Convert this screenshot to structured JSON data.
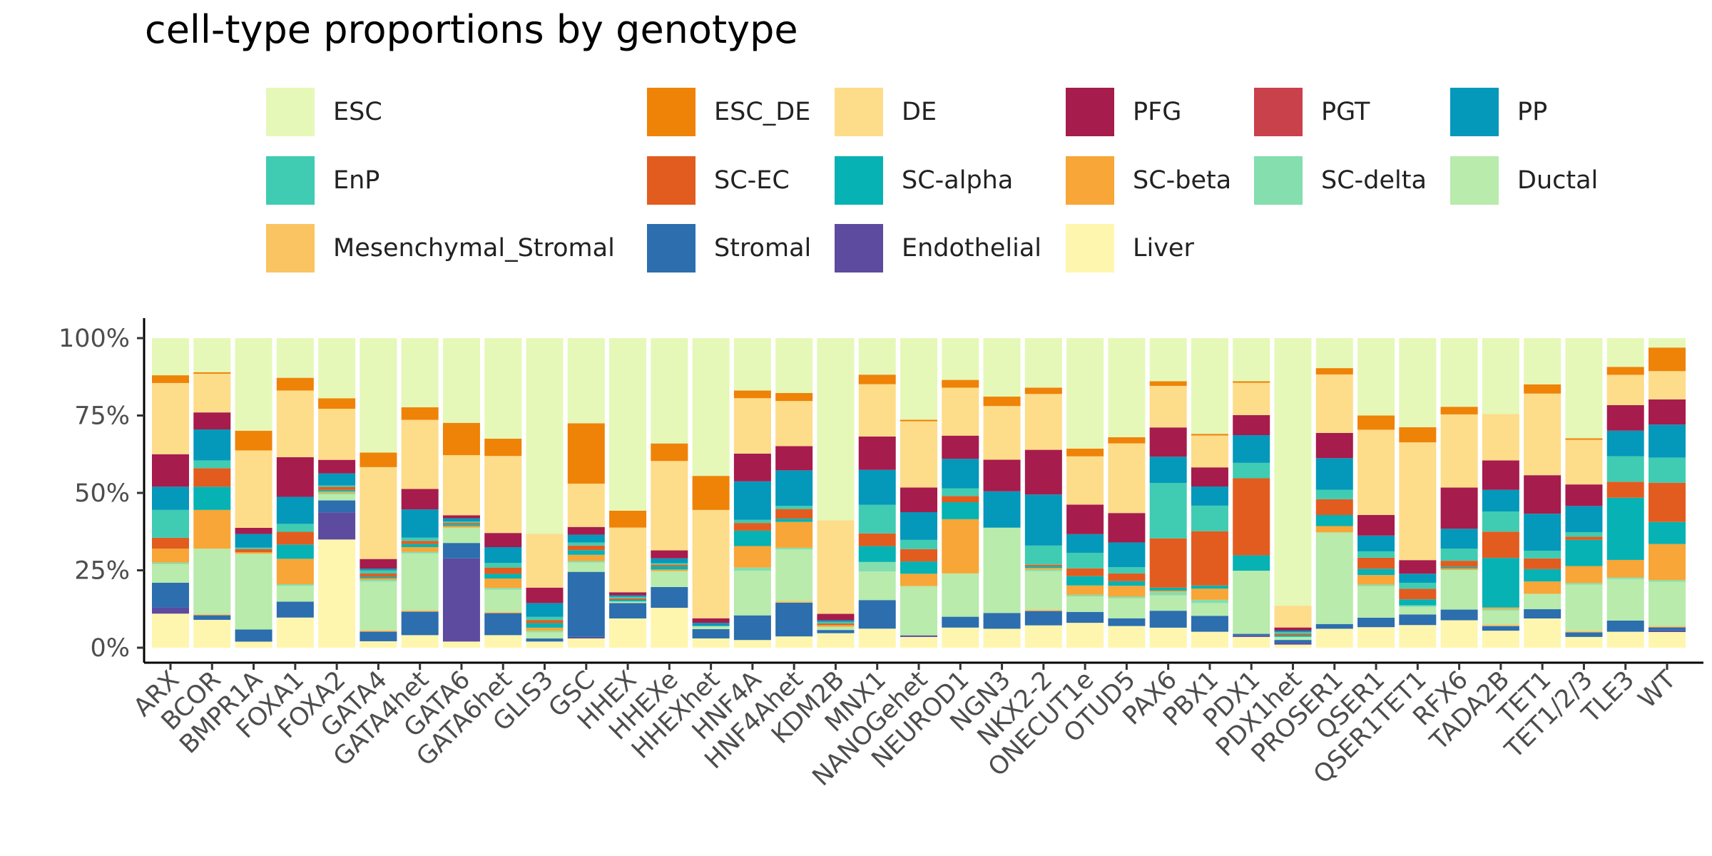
{
  "chart_data": {
    "type": "bar",
    "stacked": true,
    "title": "cell-type proportions by genotype",
    "xlabel": "",
    "ylabel": "",
    "ylim": [
      0,
      1
    ],
    "yticks": [
      0,
      0.25,
      0.5,
      0.75,
      1
    ],
    "ytick_labels": [
      "0%",
      "25%",
      "50%",
      "75%",
      "100%"
    ],
    "legend_position": "top",
    "categories": [
      "ARX",
      "BCOR",
      "BMPR1A",
      "FOXA1",
      "FOXA2",
      "GATA4",
      "GATA4het",
      "GATA6",
      "GATA6het",
      "GLIS3",
      "GSC",
      "HHEX",
      "HHEXe",
      "HHEXhet",
      "HNF4A",
      "HNF4Ahet",
      "KDM2B",
      "MNX1",
      "NANOGehet",
      "NEUROD1",
      "NGN3",
      "NKX2-2",
      "ONECUT1e",
      "OTUD5",
      "PAX6",
      "PBX1",
      "PDX1",
      "PDX1het",
      "PROSER1",
      "QSER1",
      "QSER1TET1",
      "RFX6",
      "TADA2B",
      "TET1",
      "TET1/2/3",
      "TLE3",
      "WT"
    ],
    "series": [
      {
        "name": "Liver",
        "color": "#FEF6AE",
        "values": [
          0.11,
          0.09,
          0.02,
          0.095,
          0.36,
          0.02,
          0.04,
          0.02,
          0.04,
          0.02,
          0.03,
          0.095,
          0.125,
          0.03,
          0.025,
          0.035,
          0.045,
          0.06,
          0.035,
          0.065,
          0.06,
          0.07,
          0.08,
          0.07,
          0.065,
          0.05,
          0.035,
          0.01,
          0.06,
          0.065,
          0.075,
          0.09,
          0.055,
          0.095,
          0.035,
          0.05,
          0.05
        ]
      },
      {
        "name": "Endothelial",
        "color": "#5C4B9E",
        "values": [
          0.02,
          0,
          0,
          0,
          0.09,
          0,
          0,
          0.27,
          0,
          0,
          0.005,
          0,
          0,
          0,
          0,
          0,
          0,
          0,
          0.005,
          0,
          0,
          0,
          0,
          0,
          0,
          0,
          0.005,
          0.005,
          0,
          0,
          0,
          0,
          0,
          0,
          0,
          0,
          0.005
        ]
      },
      {
        "name": "Stromal",
        "color": "#2C6EAE",
        "values": [
          0.08,
          0.015,
          0.04,
          0.05,
          0.04,
          0.03,
          0.075,
          0.05,
          0.07,
          0.01,
          0.21,
          0.05,
          0.065,
          0.03,
          0.08,
          0.105,
          0.01,
          0.09,
          0,
          0.035,
          0.05,
          0.045,
          0.035,
          0.025,
          0.055,
          0.05,
          0.005,
          0.01,
          0.015,
          0.03,
          0.035,
          0.035,
          0.015,
          0.03,
          0.015,
          0.035,
          0.01
        ]
      },
      {
        "name": "Mesenchymal_Stromal",
        "color": "#FAC462",
        "values": [
          0,
          0.005,
          0,
          0,
          0,
          0.005,
          0.005,
          0,
          0.005,
          0,
          0,
          0,
          0,
          0,
          0,
          0.005,
          0,
          0,
          0,
          0,
          0,
          0.005,
          0,
          0,
          0,
          0,
          0,
          0,
          0,
          0,
          0,
          0,
          0.005,
          0,
          0.005,
          0,
          0.005
        ]
      },
      {
        "name": "Ductal",
        "color": "#B8EBAC",
        "values": [
          0.06,
          0.21,
          0.25,
          0.05,
          0.02,
          0.15,
          0.18,
          0.05,
          0.07,
          0.02,
          0.03,
          0.005,
          0.05,
          0.01,
          0.145,
          0.16,
          0.01,
          0.09,
          0.16,
          0.14,
          0.27,
          0.12,
          0.05,
          0.065,
          0.05,
          0.04,
          0.205,
          0.01,
          0.29,
          0.1,
          0.025,
          0.13,
          0.045,
          0.05,
          0.15,
          0.13,
          0.14
        ]
      },
      {
        "name": "SC-delta",
        "color": "#84DEAE",
        "values": [
          0.005,
          0,
          0,
          0.005,
          0.005,
          0.005,
          0.005,
          0,
          0.005,
          0.005,
          0.005,
          0,
          0,
          0,
          0.01,
          0.005,
          0,
          0.03,
          0,
          0,
          0,
          0.005,
          0.005,
          0.005,
          0.01,
          0.01,
          0,
          0,
          0,
          0.005,
          0.005,
          0,
          0.005,
          0,
          0.005,
          0.005,
          0.005
        ]
      },
      {
        "name": "SC-beta",
        "color": "#F7A637",
        "values": [
          0.045,
          0.125,
          0.005,
          0.08,
          0.005,
          0.005,
          0.015,
          0.005,
          0.03,
          0.01,
          0.02,
          0,
          0.005,
          0,
          0.07,
          0.08,
          0.005,
          0,
          0.04,
          0.175,
          0,
          0.005,
          0.03,
          0.035,
          0.005,
          0.035,
          0,
          0,
          0.02,
          0.03,
          0,
          0.005,
          0.005,
          0.04,
          0.055,
          0.055,
          0.115
        ]
      },
      {
        "name": "SC-alpha",
        "color": "#06B2B3",
        "values": [
          0,
          0.075,
          0,
          0.045,
          0.005,
          0.005,
          0.01,
          0.005,
          0.015,
          0.015,
          0.015,
          0.005,
          0.01,
          0,
          0.05,
          0.01,
          0,
          0.05,
          0.04,
          0.055,
          0,
          0.005,
          0.03,
          0.015,
          0.01,
          0.01,
          0.05,
          0.005,
          0.035,
          0.02,
          0.02,
          0.005,
          0.16,
          0.04,
          0.085,
          0.195,
          0.07
        ]
      },
      {
        "name": "SC-EC",
        "color": "#E25C1F",
        "values": [
          0.035,
          0.06,
          0.01,
          0.04,
          0.01,
          0.01,
          0.01,
          0.005,
          0.02,
          0.01,
          0.015,
          0.005,
          0.005,
          0,
          0.025,
          0.03,
          0.005,
          0.04,
          0.04,
          0.02,
          0,
          0.005,
          0.025,
          0.025,
          0.16,
          0.17,
          0.25,
          0.005,
          0.05,
          0.035,
          0.035,
          0.02,
          0.085,
          0.035,
          0.01,
          0.05,
          0.125
        ]
      },
      {
        "name": "EnP",
        "color": "#3FCCB2",
        "values": [
          0.09,
          0.025,
          0.005,
          0.025,
          0.005,
          0.01,
          0.01,
          0.005,
          0.015,
          0.01,
          0.01,
          0.005,
          0.005,
          0,
          0.01,
          0.01,
          0.005,
          0.09,
          0.03,
          0.025,
          0,
          0.06,
          0.05,
          0.02,
          0.18,
          0.08,
          0.05,
          0.005,
          0.03,
          0.02,
          0.02,
          0.04,
          0.065,
          0.025,
          0.015,
          0.08,
          0.08
        ]
      },
      {
        "name": "PP",
        "color": "#0498BA",
        "values": [
          0.075,
          0.1,
          0.045,
          0.085,
          0.04,
          0.005,
          0.09,
          0.01,
          0.05,
          0.045,
          0.025,
          0.005,
          0.015,
          0.01,
          0.125,
          0.11,
          0.005,
          0.11,
          0.09,
          0.095,
          0.115,
          0.16,
          0.06,
          0.08,
          0.085,
          0.06,
          0.09,
          0.005,
          0.1,
          0.05,
          0.03,
          0.065,
          0.07,
          0.12,
          0.085,
          0.08,
          0.105
        ]
      },
      {
        "name": "PGT",
        "color": "#C9414B",
        "values": [
          0,
          0,
          0,
          0,
          0,
          0,
          0,
          0,
          0,
          0,
          0,
          0,
          0,
          0,
          0,
          0,
          0,
          0,
          0,
          0,
          0,
          0,
          0,
          0,
          0,
          0,
          0,
          0,
          0,
          0,
          0,
          0,
          0,
          0,
          0,
          0,
          0
        ]
      },
      {
        "name": "PFG",
        "color": "#A61C4C",
        "values": [
          0.105,
          0.055,
          0.02,
          0.125,
          0.045,
          0.03,
          0.065,
          0.01,
          0.045,
          0.05,
          0.025,
          0.01,
          0.025,
          0.015,
          0.09,
          0.075,
          0.02,
          0.105,
          0.08,
          0.075,
          0.1,
          0.14,
          0.095,
          0.095,
          0.095,
          0.06,
          0.065,
          0.01,
          0.08,
          0.065,
          0.045,
          0.135,
          0.095,
          0.125,
          0.07,
          0.08,
          0.08
        ]
      },
      {
        "name": "DE",
        "color": "#FDDC8A",
        "values": [
          0.23,
          0.125,
          0.255,
          0.21,
          0.17,
          0.285,
          0.22,
          0.195,
          0.245,
          0.175,
          0.14,
          0.21,
          0.28,
          0.35,
          0.18,
          0.14,
          0.29,
          0.165,
          0.215,
          0.155,
          0.17,
          0.175,
          0.155,
          0.225,
          0.135,
          0.1,
          0.105,
          0.07,
          0.185,
          0.27,
          0.39,
          0.24,
          0.15,
          0.265,
          0.145,
          0.095,
          0.09
        ]
      },
      {
        "name": "ESC_DE",
        "color": "#EE8308",
        "values": [
          0.025,
          0.005,
          0.065,
          0.04,
          0.035,
          0.045,
          0.04,
          0.105,
          0.055,
          0,
          0.195,
          0.055,
          0.055,
          0.11,
          0.025,
          0.025,
          0,
          0.03,
          0.005,
          0.025,
          0.03,
          0.02,
          0.025,
          0.02,
          0.015,
          0.005,
          0.005,
          0,
          0.02,
          0.045,
          0.05,
          0.025,
          0,
          0.03,
          0.005,
          0.025,
          0.075
        ]
      },
      {
        "name": "ESC",
        "color": "#E5F8B8",
        "values": [
          0.12,
          0.11,
          0.305,
          0.125,
          0.2,
          0.355,
          0.22,
          0.275,
          0.32,
          0.635,
          0.275,
          0.56,
          0.33,
          0.445,
          0.17,
          0.17,
          0.565,
          0.115,
          0.265,
          0.135,
          0.185,
          0.155,
          0.355,
          0.32,
          0.14,
          0.3,
          0.14,
          0.86,
          0.095,
          0.245,
          0.295,
          0.225,
          0.245,
          0.15,
          0.325,
          0.09,
          0.03
        ]
      }
    ],
    "legend_order": [
      "ESC",
      "ESC_DE",
      "DE",
      "PFG",
      "PGT",
      "PP",
      "EnP",
      "SC-EC",
      "SC-alpha",
      "SC-beta",
      "SC-delta",
      "Ductal",
      "Mesenchymal_Stromal",
      "Stromal",
      "Endothelial",
      "Liver"
    ]
  }
}
